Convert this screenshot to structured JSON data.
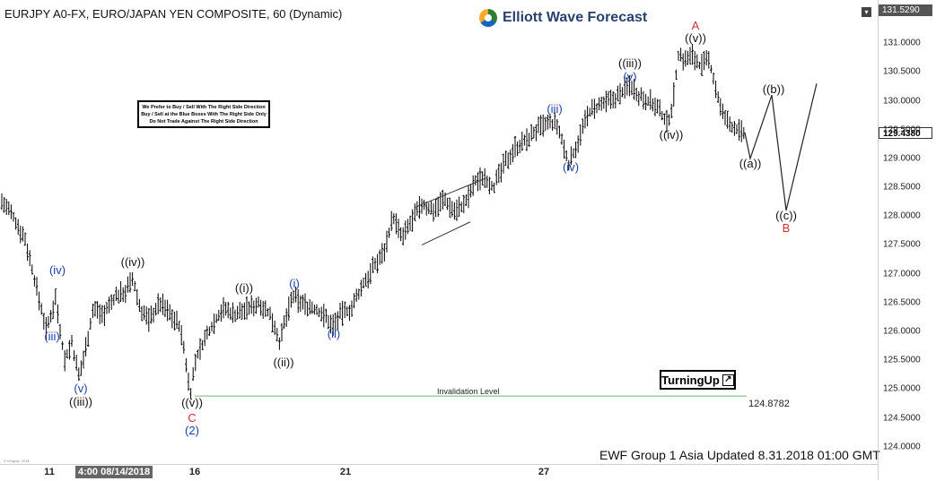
{
  "title": "EURJPY A0-FX, EURO/JAPAN YEN COMPOSITE, 60 (Dynamic)",
  "logo_text": "Elliott Wave Forecast",
  "notice_lines": [
    "We Prefer to Buy / Sell With The Right Side Direction",
    "Buy / Sell at the Blue Boxes With The Right Side Only",
    "Do Not Trade Against The Right Side Direction"
  ],
  "footer_stamp": "EWF Group 1 Asia Updated 8.31.2018 01:00 GMT",
  "turning_label": "TurningUp",
  "turning_arrow": "↗",
  "watermark": "© eSignal, 2018",
  "corner_icon": "collapse-icon",
  "colors": {
    "bars": "#000000",
    "projection": "#222222",
    "wave_black": "#111111",
    "wave_blue": "#1a3fa8",
    "wave_red": "#d32f2f",
    "invalidation_line": "#66bb6a"
  },
  "chart_data": {
    "type": "ohlc",
    "title": "EURJPY A0-FX, EURO/JAPAN YEN COMPOSITE, 60 (Dynamic)",
    "ylim": [
      123.7,
      131.75
    ],
    "xlim": [
      0,
      978
    ],
    "y_ticks": [
      "131.0000",
      "130.5000",
      "130.0000",
      "129.5000",
      "129.0000",
      "128.5000",
      "128.0000",
      "127.5000",
      "127.0000",
      "126.5000",
      "126.0000",
      "125.5000",
      "125.0000",
      "124.5000",
      "124.0000"
    ],
    "price_tags": {
      "top": "131.5290",
      "last": "129.4380"
    },
    "x_ticks": [
      {
        "label": "11",
        "x": 55
      },
      {
        "label": "16",
        "x": 217
      },
      {
        "label": "21",
        "x": 385
      },
      {
        "label": "27",
        "x": 606
      }
    ],
    "x_cursor_label": "4:00 08/14/2018",
    "price_path": [
      [
        0,
        128.3
      ],
      [
        14,
        128.0
      ],
      [
        28,
        127.6
      ],
      [
        40,
        126.8
      ],
      [
        52,
        126.0
      ],
      [
        62,
        126.6
      ],
      [
        72,
        125.5
      ],
      [
        80,
        125.8
      ],
      [
        88,
        125.2
      ],
      [
        94,
        125.6
      ],
      [
        104,
        126.4
      ],
      [
        116,
        126.3
      ],
      [
        128,
        126.6
      ],
      [
        140,
        126.7
      ],
      [
        148,
        126.9
      ],
      [
        156,
        126.4
      ],
      [
        166,
        126.2
      ],
      [
        178,
        126.5
      ],
      [
        190,
        126.3
      ],
      [
        200,
        126.1
      ],
      [
        206,
        125.6
      ],
      [
        212,
        124.9
      ],
      [
        218,
        125.5
      ],
      [
        226,
        125.8
      ],
      [
        236,
        126.1
      ],
      [
        248,
        126.4
      ],
      [
        262,
        126.3
      ],
      [
        276,
        126.4
      ],
      [
        290,
        126.5
      ],
      [
        304,
        126.2
      ],
      [
        312,
        125.8
      ],
      [
        318,
        126.2
      ],
      [
        326,
        126.6
      ],
      [
        336,
        126.5
      ],
      [
        348,
        126.4
      ],
      [
        360,
        126.3
      ],
      [
        370,
        126.1
      ],
      [
        380,
        126.3
      ],
      [
        392,
        126.4
      ],
      [
        404,
        126.8
      ],
      [
        416,
        127.1
      ],
      [
        428,
        127.4
      ],
      [
        438,
        128.0
      ],
      [
        448,
        127.6
      ],
      [
        458,
        127.9
      ],
      [
        470,
        128.2
      ],
      [
        482,
        128.1
      ],
      [
        494,
        128.3
      ],
      [
        506,
        128.1
      ],
      [
        518,
        128.2
      ],
      [
        530,
        128.6
      ],
      [
        540,
        128.7
      ],
      [
        550,
        128.5
      ],
      [
        562,
        128.9
      ],
      [
        574,
        129.2
      ],
      [
        586,
        129.3
      ],
      [
        598,
        129.5
      ],
      [
        610,
        129.6
      ],
      [
        620,
        129.6
      ],
      [
        626,
        129.3
      ],
      [
        634,
        128.9
      ],
      [
        644,
        129.3
      ],
      [
        656,
        129.8
      ],
      [
        668,
        129.9
      ],
      [
        680,
        130.0
      ],
      [
        690,
        130.1
      ],
      [
        702,
        130.3
      ],
      [
        712,
        130.1
      ],
      [
        724,
        130.0
      ],
      [
        736,
        129.8
      ],
      [
        744,
        129.6
      ],
      [
        750,
        130.0
      ],
      [
        756,
        130.8
      ],
      [
        764,
        130.7
      ],
      [
        772,
        130.8
      ],
      [
        780,
        130.6
      ],
      [
        790,
        130.7
      ],
      [
        798,
        130.2
      ],
      [
        804,
        129.8
      ],
      [
        812,
        129.6
      ],
      [
        822,
        129.5
      ],
      [
        830,
        129.4
      ]
    ],
    "projection_path": [
      [
        830,
        129.45
      ],
      [
        836,
        129.0
      ],
      [
        860,
        130.1
      ],
      [
        876,
        128.1
      ],
      [
        910,
        130.3
      ]
    ],
    "channels": [
      {
        "from": [
          462,
          128.15
        ],
        "to": [
          540,
          128.65
        ]
      },
      {
        "from": [
          470,
          127.5
        ],
        "to": [
          524,
          127.9
        ]
      }
    ],
    "invalidation": {
      "label": "Invalidation Level",
      "value": 124.8782,
      "value_label": "124.8782",
      "x_start": 217,
      "x_end": 832
    },
    "wave_labels": [
      {
        "text": "(iv)",
        "x": 64,
        "y": 127.05,
        "color": "blue"
      },
      {
        "text": "(iii)",
        "x": 58,
        "y": 125.9,
        "color": "blue"
      },
      {
        "text": "(v)",
        "x": 90,
        "y": 125.0,
        "color": "blue"
      },
      {
        "text": "((iii))",
        "x": 90,
        "y": 124.78,
        "color": "black"
      },
      {
        "text": "((iv))",
        "x": 148,
        "y": 127.2,
        "color": "black"
      },
      {
        "text": "((v))",
        "x": 214,
        "y": 124.75,
        "color": "black"
      },
      {
        "text": "C",
        "x": 214,
        "y": 124.5,
        "color": "red"
      },
      {
        "text": "(2)",
        "x": 214,
        "y": 124.28,
        "color": "blue"
      },
      {
        "text": "((i))",
        "x": 272,
        "y": 126.75,
        "color": "black"
      },
      {
        "text": "((ii))",
        "x": 316,
        "y": 125.45,
        "color": "black"
      },
      {
        "text": "(i)",
        "x": 328,
        "y": 126.82,
        "color": "blue"
      },
      {
        "text": "(ii)",
        "x": 372,
        "y": 125.95,
        "color": "blue"
      },
      {
        "text": "(iii)",
        "x": 618,
        "y": 129.85,
        "color": "blue"
      },
      {
        "text": "(iv)",
        "x": 636,
        "y": 128.85,
        "color": "blue"
      },
      {
        "text": "((iii))",
        "x": 702,
        "y": 130.65,
        "color": "black"
      },
      {
        "text": "(v)",
        "x": 702,
        "y": 130.42,
        "color": "blue"
      },
      {
        "text": "((iv))",
        "x": 748,
        "y": 129.4,
        "color": "black"
      },
      {
        "text": "A",
        "x": 775,
        "y": 131.3,
        "color": "red"
      },
      {
        "text": "((v))",
        "x": 775,
        "y": 131.08,
        "color": "black"
      },
      {
        "text": "((b))",
        "x": 862,
        "y": 130.2,
        "color": "black"
      },
      {
        "text": "((a))",
        "x": 836,
        "y": 128.9,
        "color": "black"
      },
      {
        "text": "((c))",
        "x": 876,
        "y": 128.0,
        "color": "black"
      },
      {
        "text": "B",
        "x": 876,
        "y": 127.78,
        "color": "red"
      }
    ]
  }
}
